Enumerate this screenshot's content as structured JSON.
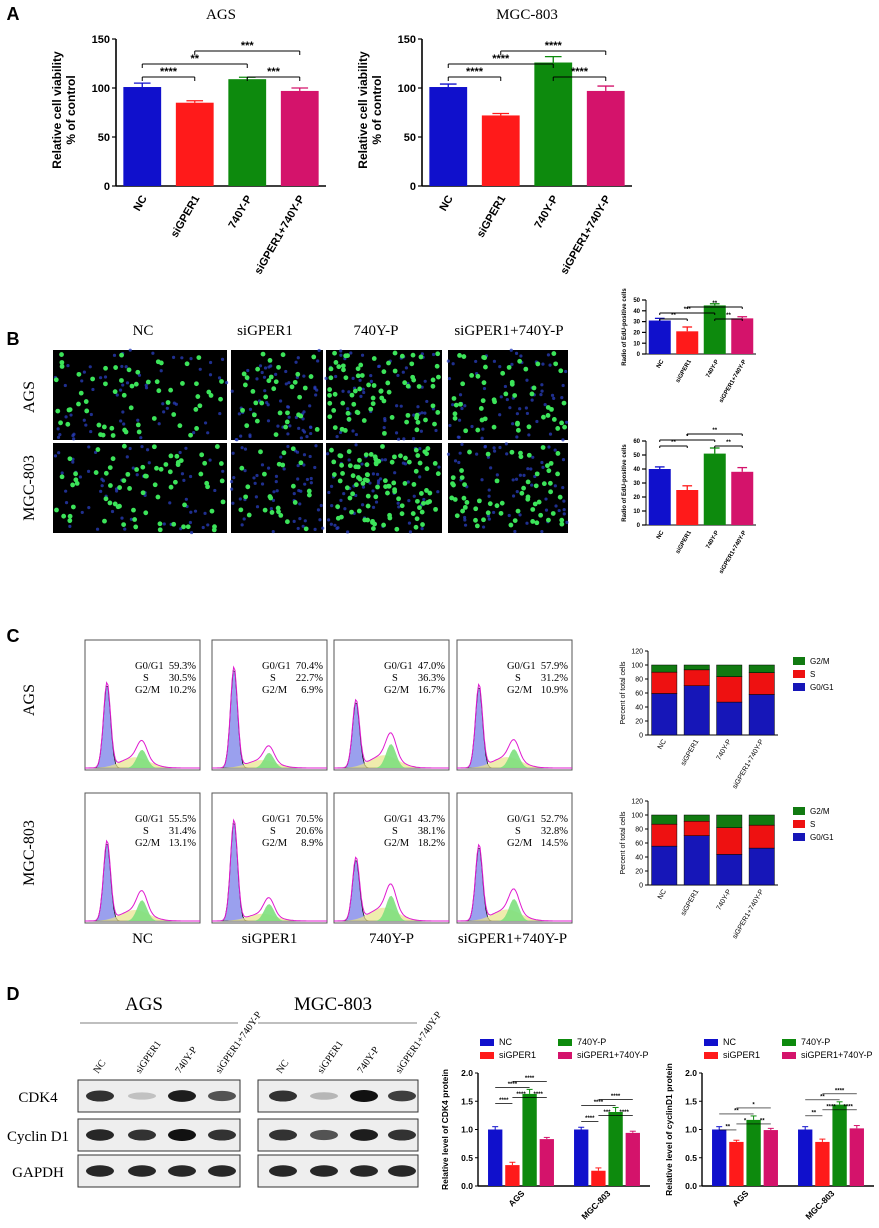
{
  "colors": {
    "blue": "#1010cc",
    "red": "#ff1a1a",
    "green": "#0d8a0d",
    "pink": "#d4136b",
    "g2m": "#117a11",
    "s": "#ee1111",
    "g0g1": "#1616b8"
  },
  "panel_labels": {
    "A": "A",
    "B": "B",
    "C": "C",
    "D": "D"
  },
  "panelA": {
    "ylabel1": "Relative cell viability",
    "ylabel2": "% of control",
    "groups": [
      "NC",
      "siGPER1",
      "740Y-P",
      "siGPER1+740Y-P"
    ]
  },
  "panelB": {
    "column_titles": [
      "NC",
      "siGPER1",
      "740Y-P",
      "siGPER1+740Y-P"
    ],
    "row_titles": [
      "AGS",
      "MGC-803"
    ],
    "ylabel": "Radio of EdU-positive cells"
  },
  "panelC": {
    "row_titles": [
      "AGS",
      "MGC-803"
    ],
    "column_titles": [
      "NC",
      "siGPER1",
      "740Y-P",
      "siGPER1+740Y-P"
    ],
    "phase_labels": [
      "G0/G1",
      "S",
      "G2/M"
    ],
    "stats_AGS": [
      [
        "59.3%",
        "30.5%",
        "10.2%"
      ],
      [
        "70.4%",
        "22.7%",
        "6.9%"
      ],
      [
        "47.0%",
        "36.3%",
        "16.7%"
      ],
      [
        "57.9%",
        "31.2%",
        "10.9%"
      ]
    ],
    "stats_MGC": [
      [
        "55.5%",
        "31.4%",
        "13.1%"
      ],
      [
        "70.5%",
        "20.6%",
        "8.9%"
      ],
      [
        "43.7%",
        "38.1%",
        "18.2%"
      ],
      [
        "52.7%",
        "32.8%",
        "14.5%"
      ]
    ],
    "ylabel": "Percent of total cells",
    "legend": [
      "G2/M",
      "S",
      "G0/G1"
    ]
  },
  "panelD": {
    "cell_lines": [
      "AGS",
      "MGC-803"
    ],
    "lanes": [
      "NC",
      "siGPER1",
      "740Y-P",
      "siGPER1+740Y-P"
    ],
    "proteins": [
      "CDK4",
      "Cyclin D1",
      "GAPDH"
    ],
    "legend": [
      "NC",
      "siGPER1",
      "740Y-P",
      "siGPER1+740Y-P"
    ],
    "ylabel_cdk4": "Relative level of CDK4 protein",
    "ylabel_cyclin": "Relative level of cyclinD1 protein"
  },
  "chart_data": [
    {
      "id": "A-AGS",
      "type": "bar",
      "title": "AGS",
      "categories": [
        "NC",
        "siGPER1",
        "740Y-P",
        "siGPER1+740Y-P"
      ],
      "values": [
        101,
        85,
        109,
        97
      ],
      "errors": [
        4,
        2,
        2,
        3
      ],
      "ylim": [
        0,
        150
      ],
      "yticks": [
        0,
        50,
        100,
        150
      ],
      "ylabel": "Relative cell viability % of control",
      "sig": [
        {
          "from": 0,
          "to": 1,
          "label": "****",
          "level": 1
        },
        {
          "from": 0,
          "to": 2,
          "label": "**",
          "level": 2
        },
        {
          "from": 2,
          "to": 3,
          "label": "***",
          "level": 1
        },
        {
          "from": 1,
          "to": 3,
          "label": "***",
          "level": 3
        }
      ]
    },
    {
      "id": "A-MGC",
      "type": "bar",
      "title": "MGC-803",
      "categories": [
        "NC",
        "siGPER1",
        "740Y-P",
        "siGPER1+740Y-P"
      ],
      "values": [
        101,
        72,
        126,
        97
      ],
      "errors": [
        3,
        2,
        6,
        5
      ],
      "ylim": [
        0,
        150
      ],
      "yticks": [
        0,
        50,
        100,
        150
      ],
      "ylabel": "Relative cell viability % of control",
      "sig": [
        {
          "from": 0,
          "to": 1,
          "label": "****",
          "level": 1
        },
        {
          "from": 0,
          "to": 2,
          "label": "****",
          "level": 2
        },
        {
          "from": 2,
          "to": 3,
          "label": "****",
          "level": 1
        },
        {
          "from": 1,
          "to": 3,
          "label": "****",
          "level": 3
        }
      ]
    },
    {
      "id": "B-AGS",
      "type": "bar",
      "categories": [
        "NC",
        "siGPER1",
        "740Y-P",
        "siGPER1+740Y-P"
      ],
      "values": [
        31,
        21,
        45,
        33
      ],
      "errors": [
        2,
        4,
        1.5,
        1.5
      ],
      "ylim": [
        0,
        50
      ],
      "yticks": [
        0,
        10,
        20,
        30,
        40,
        50
      ],
      "ylabel": "Radio of EdU-positive cells",
      "sig": [
        {
          "from": 0,
          "to": 1,
          "label": "**",
          "level": 1
        },
        {
          "from": 0,
          "to": 2,
          "label": "***",
          "level": 2
        },
        {
          "from": 2,
          "to": 3,
          "label": "**",
          "level": 1
        },
        {
          "from": 1,
          "to": 3,
          "label": "**",
          "level": 3
        }
      ]
    },
    {
      "id": "B-MGC",
      "type": "bar",
      "categories": [
        "NC",
        "siGPER1",
        "740Y-P",
        "siGPER1+740Y-P"
      ],
      "values": [
        40,
        25,
        51,
        38
      ],
      "errors": [
        1.5,
        3,
        4,
        3
      ],
      "ylim": [
        0,
        60
      ],
      "yticks": [
        0,
        10,
        20,
        30,
        40,
        50,
        60
      ],
      "ylabel": "Radio of EdU-positive cells",
      "sig": [
        {
          "from": 0,
          "to": 1,
          "label": "**",
          "level": 1
        },
        {
          "from": 0,
          "to": 2,
          "label": "*",
          "level": 2
        },
        {
          "from": 2,
          "to": 3,
          "label": "**",
          "level": 1
        },
        {
          "from": 1,
          "to": 3,
          "label": "**",
          "level": 3
        }
      ]
    },
    {
      "id": "C-AGS",
      "type": "bar",
      "stacked": true,
      "categories": [
        "NC",
        "siGPER1",
        "740Y-P",
        "siGPER1+740Y-P"
      ],
      "ylim": [
        0,
        120
      ],
      "yticks": [
        0,
        20,
        40,
        60,
        80,
        100,
        120
      ],
      "ylabel": "Percent of total cells",
      "series": [
        {
          "name": "G0/G1",
          "values": [
            59.3,
            70.4,
            47.0,
            57.9
          ]
        },
        {
          "name": "S",
          "values": [
            30.5,
            22.7,
            36.3,
            31.2
          ]
        },
        {
          "name": "G2/M",
          "values": [
            10.2,
            6.9,
            16.7,
            10.9
          ]
        }
      ]
    },
    {
      "id": "C-MGC",
      "type": "bar",
      "stacked": true,
      "categories": [
        "NC",
        "siGPER1",
        "740Y-P",
        "siGPER1+740Y-P"
      ],
      "ylim": [
        0,
        120
      ],
      "yticks": [
        0,
        20,
        40,
        60,
        80,
        100,
        120
      ],
      "ylabel": "Percent of total cells",
      "series": [
        {
          "name": "G0/G1",
          "values": [
            55.5,
            70.5,
            43.7,
            52.7
          ]
        },
        {
          "name": "S",
          "values": [
            31.4,
            20.6,
            38.1,
            32.8
          ]
        },
        {
          "name": "G2/M",
          "values": [
            13.1,
            8.9,
            18.2,
            14.5
          ]
        }
      ]
    },
    {
      "id": "D-CDK4",
      "type": "bar",
      "grouped": true,
      "categories": [
        "AGS",
        "MGC-803"
      ],
      "ylim": [
        0,
        2.0
      ],
      "yticks": [
        "0.0",
        "0.5",
        "1.0",
        "1.5",
        "2.0"
      ],
      "ylabel": "Relative level of CDK4 protein",
      "series": [
        {
          "name": "NC",
          "values": [
            1.0,
            1.0
          ],
          "errors": [
            0.05,
            0.04
          ]
        },
        {
          "name": "siGPER1",
          "values": [
            0.37,
            0.27
          ],
          "errors": [
            0.05,
            0.05
          ]
        },
        {
          "name": "740Y-P",
          "values": [
            1.63,
            1.31
          ],
          "errors": [
            0.08,
            0.08
          ]
        },
        {
          "name": "siGPER1+740Y-P",
          "values": [
            0.83,
            0.94
          ],
          "errors": [
            0.03,
            0.03
          ]
        }
      ],
      "sig": [
        [
          "****",
          "****",
          "****",
          "****",
          "****"
        ],
        [
          "****",
          "***",
          "****",
          "****",
          "****"
        ]
      ]
    },
    {
      "id": "D-CyclinD1",
      "type": "bar",
      "grouped": true,
      "categories": [
        "AGS",
        "MGC-803"
      ],
      "ylim": [
        0,
        2.0
      ],
      "yticks": [
        "0.0",
        "0.5",
        "1.0",
        "1.5",
        "2.0"
      ],
      "ylabel": "Relative level of cyclinD1 protein",
      "series": [
        {
          "name": "NC",
          "values": [
            1.0,
            1.0
          ],
          "errors": [
            0.05,
            0.05
          ]
        },
        {
          "name": "siGPER1",
          "values": [
            0.78,
            0.78
          ],
          "errors": [
            0.03,
            0.05
          ]
        },
        {
          "name": "740Y-P",
          "values": [
            1.17,
            1.44
          ],
          "errors": [
            0.07,
            0.05
          ]
        },
        {
          "name": "siGPER1+740Y-P",
          "values": [
            0.99,
            1.02
          ],
          "errors": [
            0.03,
            0.05
          ]
        }
      ],
      "sig": [
        [
          "**",
          "*",
          "**",
          "**",
          "*"
        ],
        [
          "**",
          "****",
          "****",
          "**",
          "****"
        ]
      ]
    }
  ]
}
